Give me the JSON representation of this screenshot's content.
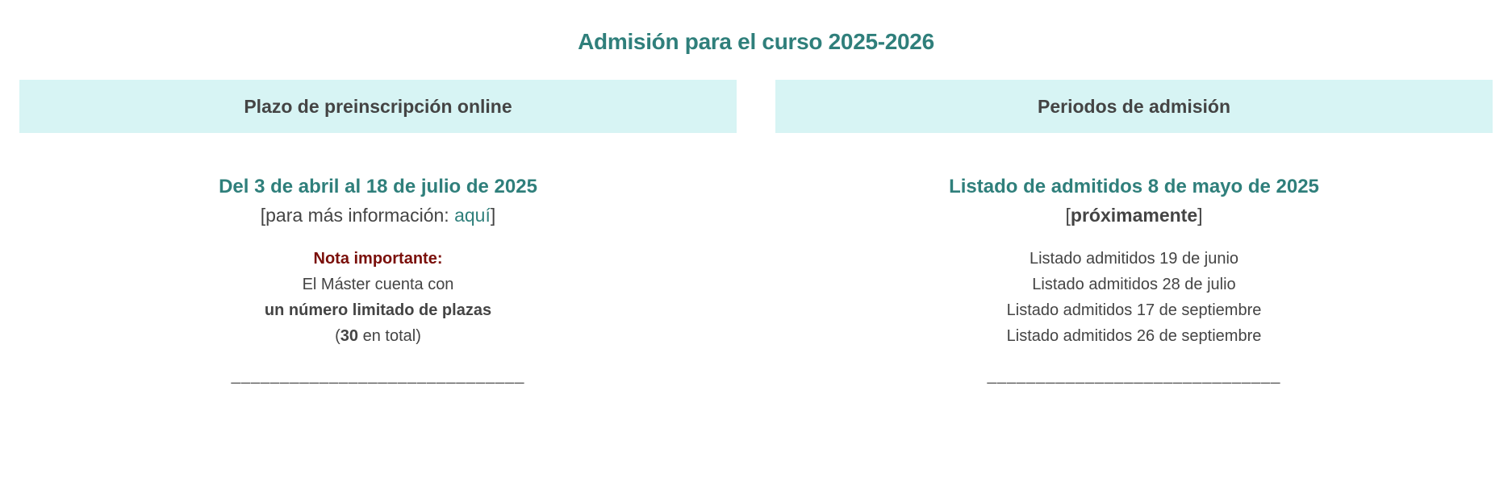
{
  "title": "Admisión para el curso 2025-2026",
  "left": {
    "header": "Plazo de preinscripción online",
    "dates": "Del 3 de abril al 18 de julio de 2025",
    "info_prefix": "[para más información: ",
    "info_link": "aquí",
    "info_suffix": "]",
    "note_label": "Nota importante:",
    "note_line1": "El Máster cuenta con",
    "note_line2": "un número limitado de plazas",
    "note_open": "(",
    "note_count": "30",
    "note_rest": " en total)",
    "separator": "______________________________"
  },
  "right": {
    "header": "Periodos de admisión",
    "main": "Listado de admitidos 8 de mayo de 2025",
    "status_open": "[",
    "status": "próximamente",
    "status_close": "]",
    "listings": [
      "Listado admitidos 19 de junio",
      "Listado admitidos 28 de julio",
      "Listado admitidos 17 de septiembre",
      "Listado admitidos 26 de septiembre"
    ],
    "separator": "______________________________"
  },
  "colors": {
    "accent": "#2f7f7b",
    "header_bg": "#d7f4f4",
    "note": "#7a0f0a",
    "text": "#444444"
  }
}
